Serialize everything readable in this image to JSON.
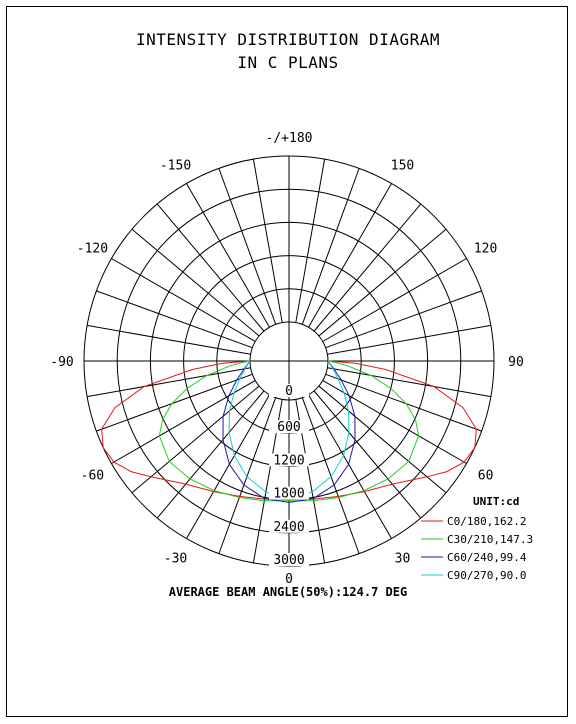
{
  "title_line1": "INTENSITY DISTRIBUTION DIAGRAM",
  "title_line2": "IN C PLANS",
  "footer": "AVERAGE BEAM ANGLE(50%):124.7 DEG",
  "chart_data": {
    "type": "polar",
    "unit_label": "UNIT:cd",
    "radial_ticks": [
      {
        "value": 0,
        "label": "0"
      },
      {
        "value": 600,
        "label": "600"
      },
      {
        "value": 1200,
        "label": "1200"
      },
      {
        "value": 1800,
        "label": "1800"
      },
      {
        "value": 2400,
        "label": "2400"
      },
      {
        "value": 3000,
        "label": "3000"
      }
    ],
    "r_max": 3000,
    "angle_labels": [
      {
        "angle": 180,
        "label": "-/+180"
      },
      {
        "angle": 150,
        "label": "150"
      },
      {
        "angle": 120,
        "label": "120"
      },
      {
        "angle": 90,
        "label": "90"
      },
      {
        "angle": 60,
        "label": "60"
      },
      {
        "angle": 30,
        "label": "30"
      },
      {
        "angle": 0,
        "label": "0"
      },
      {
        "angle": -30,
        "label": "-30"
      },
      {
        "angle": -60,
        "label": "-60"
      },
      {
        "angle": -90,
        "label": "-90"
      },
      {
        "angle": -120,
        "label": "-120"
      },
      {
        "angle": -150,
        "label": "-150"
      }
    ],
    "series": [
      {
        "name": "C0/180,162.2",
        "color": "#e31a1c",
        "angles": [
          0,
          10,
          20,
          30,
          40,
          50,
          55,
          60,
          65,
          70,
          75,
          80,
          85,
          88,
          90
        ],
        "values": [
          1800,
          1830,
          1900,
          2020,
          2200,
          2550,
          2780,
          2950,
          3000,
          2900,
          2550,
          1950,
          1050,
          500,
          0
        ]
      },
      {
        "name": "C30/210,147.3",
        "color": "#22cc22",
        "angles": [
          0,
          10,
          20,
          30,
          40,
          50,
          60,
          65,
          70,
          75,
          80,
          85,
          88,
          90
        ],
        "values": [
          1820,
          1860,
          1920,
          2000,
          2080,
          2120,
          2000,
          1820,
          1550,
          1200,
          800,
          380,
          150,
          0
        ]
      },
      {
        "name": "C60/240,99.4",
        "color": "#1a1ab0",
        "angles": [
          0,
          10,
          20,
          30,
          40,
          50,
          60,
          70,
          80,
          90
        ],
        "values": [
          1850,
          1820,
          1680,
          1450,
          1150,
          850,
          550,
          300,
          120,
          0
        ]
      },
      {
        "name": "C90/270,90.0",
        "color": "#18d0d0",
        "angles": [
          0,
          10,
          20,
          30,
          40,
          50,
          60,
          70,
          80,
          90
        ],
        "values": [
          1780,
          1700,
          1520,
          1270,
          980,
          700,
          440,
          240,
          100,
          0
        ]
      }
    ]
  }
}
